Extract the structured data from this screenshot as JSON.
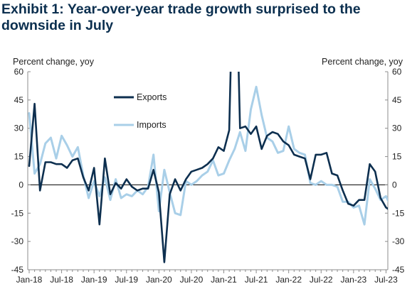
{
  "exhibit_title": "Exhibit 1: Year-over-year trade growth surprised to the downside in July",
  "colors": {
    "exports": "#0d2f4f",
    "imports": "#a9cfe8",
    "title": "#0b2f4f",
    "axis": "#8c8c8c",
    "zero_line": "#000000"
  },
  "chart_data": {
    "type": "line",
    "title": "Exhibit 1: Year-over-year trade growth surprised to the downside in July",
    "ylabel_left": "Percent change, yoy",
    "ylabel_right": "Percent change, yoy",
    "ylim": [
      -45,
      60
    ],
    "yticks": [
      60,
      45,
      30,
      15,
      0,
      -15,
      -30,
      -45
    ],
    "ytick_labels": [
      "60",
      "45",
      "30",
      "15",
      "0",
      "-15",
      "-30",
      "-45"
    ],
    "xtick_labels": [
      "Jan-18",
      "Jul-18",
      "Jan-19",
      "Jul-19",
      "Jan-20",
      "Jul-20",
      "Jan-21",
      "Jul-21",
      "Jan-22",
      "Jul-22",
      "Jan-23",
      "Jul-23"
    ],
    "x_start": "Jan-18",
    "x_end": "Jul-23",
    "grid": false,
    "legend": "top-left",
    "series": [
      {
        "name": "Exports",
        "values": [
          10,
          43,
          -3,
          12,
          12,
          11,
          11,
          9,
          13,
          14,
          4,
          -3,
          9,
          -21,
          14,
          -5,
          1,
          -2,
          3,
          -1,
          -3,
          -2,
          -2,
          8,
          -4,
          -41,
          -5,
          3,
          -3,
          3,
          7,
          8,
          9,
          11,
          14,
          20,
          18,
          29,
          150,
          30,
          31,
          27,
          31,
          19,
          26,
          28,
          27,
          23,
          21,
          16,
          15,
          14,
          3,
          16,
          16,
          17,
          6,
          5,
          -3,
          -10,
          -11,
          -8,
          -8,
          11,
          7,
          -7,
          -12,
          -14
        ],
        "clip_note": ""
      },
      {
        "name": "Imports",
        "values": [
          38,
          6,
          11,
          22,
          25,
          14,
          26,
          21,
          15,
          20,
          5,
          -7,
          2,
          -6,
          4,
          -8,
          3,
          -7,
          -5,
          -6,
          -3,
          -5,
          -1,
          16,
          -14,
          8,
          -4,
          -15,
          -16,
          2,
          0,
          2,
          5,
          7,
          13,
          5,
          6,
          13,
          19,
          28,
          18,
          40,
          52,
          37,
          25,
          23,
          17,
          18,
          31,
          19,
          17,
          16,
          1,
          0,
          2,
          0,
          0,
          -1,
          -9,
          -9,
          -12,
          -11,
          -21,
          3,
          -2,
          -8,
          -6,
          -12
        ]
      }
    ]
  }
}
